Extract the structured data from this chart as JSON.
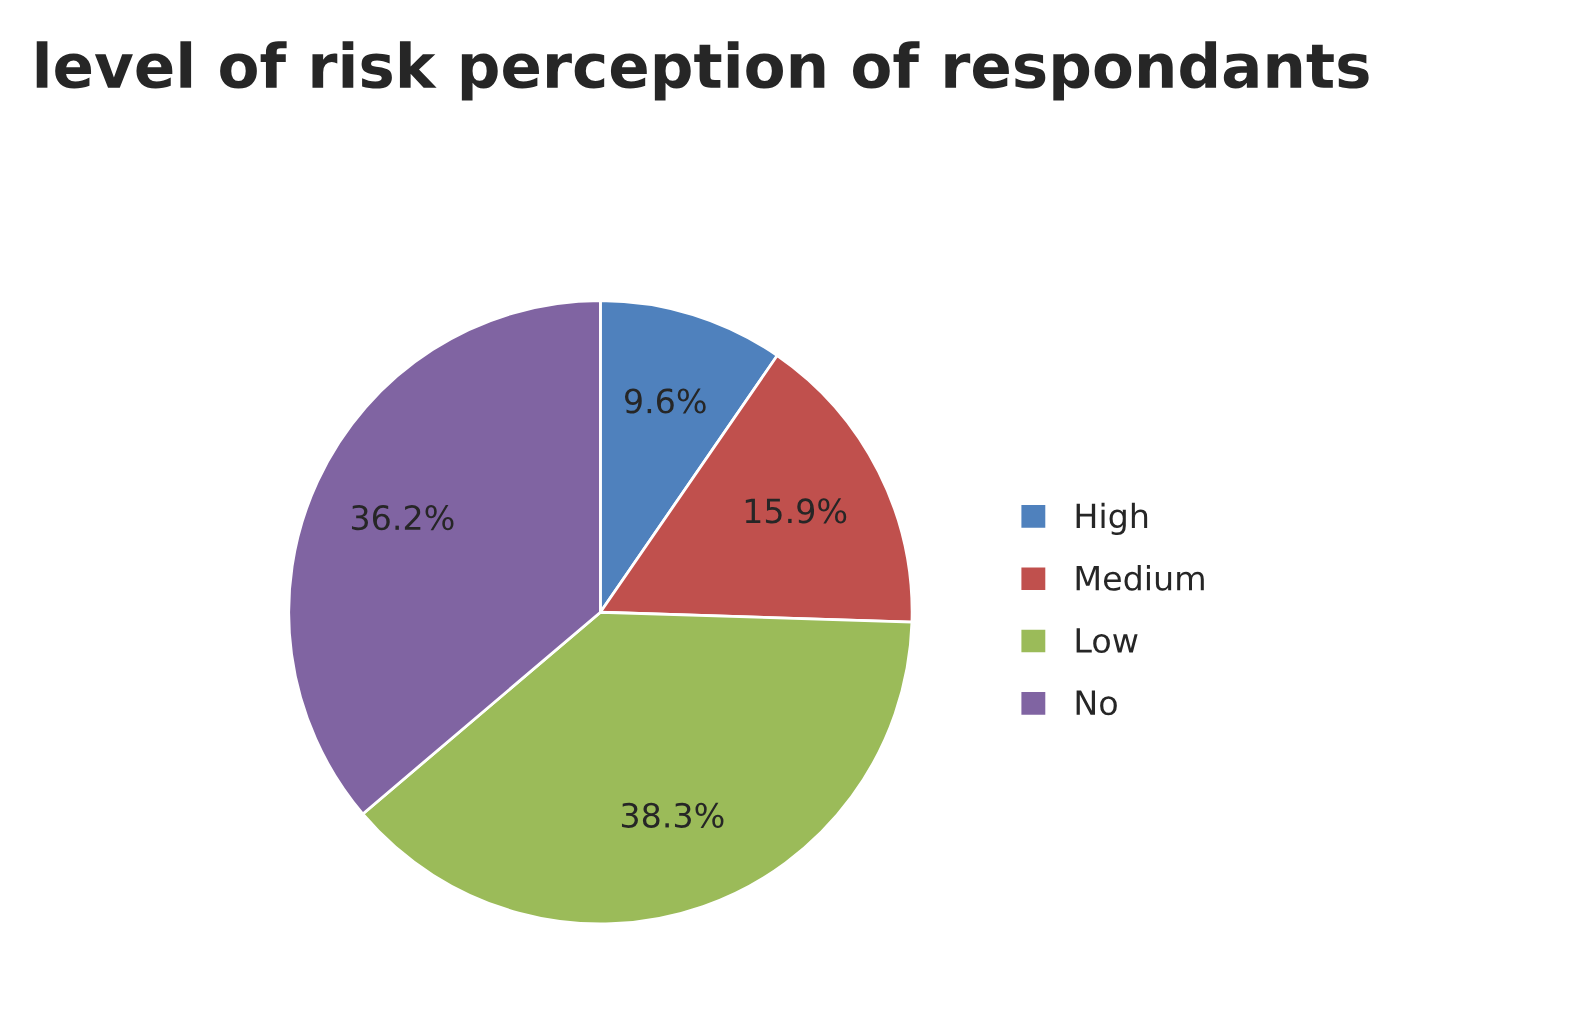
{
  "chart_data": {
    "type": "pie",
    "title": "level of risk perception of respondants",
    "categories": [
      "High",
      "Medium",
      "Low",
      "No"
    ],
    "values": [
      9.6,
      15.9,
      38.3,
      36.2
    ],
    "colors": [
      "#4f81bd",
      "#c0504d",
      "#9bbb59",
      "#8064a2"
    ],
    "value_labels": [
      "9.6%",
      "15.9%",
      "38.3%",
      "36.2%"
    ],
    "legend": "right"
  }
}
